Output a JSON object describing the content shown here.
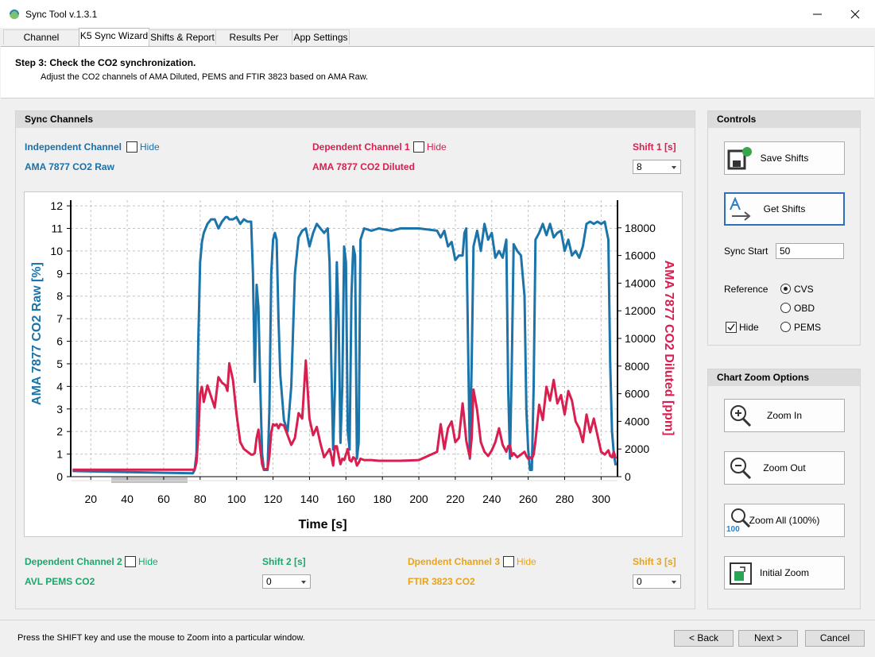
{
  "window": {
    "title": "Sync Tool v.1.3.1"
  },
  "tabs": [
    "Channel Selection",
    "K5 Sync Wizard",
    "Shifts & Report",
    "Results Per Cycle",
    "App Settings"
  ],
  "header": {
    "step": "Step 3: Check the CO2 synchronization.",
    "description": "Adjust the CO2 channels of AMA Diluted, PEMS and FTIR 3823 based on AMA Raw."
  },
  "sync_channels": {
    "title": "Sync Channels",
    "independent": {
      "label": "Independent Channel",
      "hide": "Hide",
      "channel": "AMA 7877 CO2 Raw"
    },
    "dependent_1": {
      "label": "Dependent Channel 1",
      "hide": "Hide",
      "channel": "AMA 7877 CO2 Diluted",
      "shift_label": "Shift 1 [s]",
      "shift": 8
    },
    "dependent_2": {
      "label": "Dependent Channel 2",
      "hide": "Hide",
      "channel": "AVL PEMS CO2",
      "shift_label": "Shift 2 [s]",
      "shift": 0
    },
    "dependent_3": {
      "label": "Dpendent Channel 3",
      "hide": "Hide",
      "channel": "FTIR 3823 CO2",
      "shift_label": "Shift 3 [s]",
      "shift": 0
    }
  },
  "controls": {
    "title": "Controls",
    "save": "Save Shifts",
    "get": "Get Shifts",
    "sync_start_label": "Sync Start",
    "sync_start": 50,
    "reference_label": "Reference",
    "options": [
      "CVS",
      "OBD",
      "PEMS"
    ],
    "hide": "Hide"
  },
  "zoom": {
    "title": "Chart Zoom Options",
    "buttons": [
      "Zoom In",
      "Zoom Out",
      "Zoom All (100%)",
      "Initial Zoom"
    ],
    "all_icon": "100"
  },
  "footer": {
    "hint": "Press the SHIFT key and use the mouse to Zoom into a particular window.",
    "buttons": [
      "< Back",
      "Next >",
      "Cancel"
    ]
  },
  "chart_data": {
    "type": "line",
    "xlabel": "Time [s]",
    "ylabel": "AMA 7877 CO2 Raw [%]",
    "y2label": "AMA 7877 CO2 Diluted [ppm]",
    "x": [
      10,
      40,
      76,
      77,
      78,
      79,
      80,
      81,
      82,
      84,
      86,
      88,
      90,
      92,
      94,
      95,
      96,
      98,
      100,
      102,
      104,
      106,
      108,
      109,
      110,
      111,
      112,
      113,
      114,
      115,
      117,
      118,
      119,
      120,
      121,
      122,
      123,
      124,
      126,
      128,
      130,
      132,
      134,
      136,
      138,
      140,
      142,
      144,
      146,
      148,
      150,
      151,
      152,
      153,
      154,
      155,
      156,
      157,
      158,
      159,
      160,
      161,
      162,
      163,
      164,
      165,
      166,
      167,
      168,
      170,
      174,
      178,
      185,
      190,
      200,
      210,
      212,
      214,
      216,
      218,
      220,
      222,
      224,
      225,
      226,
      227,
      228,
      229,
      230,
      232,
      234,
      236,
      238,
      240,
      242,
      244,
      246,
      248,
      249,
      250,
      251,
      252,
      254,
      256,
      258,
      259,
      260,
      261,
      262,
      263,
      264,
      266,
      268,
      270,
      272,
      274,
      276,
      278,
      280,
      282,
      284,
      286,
      288,
      290,
      292,
      294,
      296,
      298,
      300,
      302,
      304,
      305,
      306,
      307,
      308
    ],
    "series": [
      {
        "color": "#1b74aa",
        "values": [
          0.25,
          0.2,
          0.15,
          0.3,
          1,
          6,
          9.5,
          10.4,
          10.8,
          11.2,
          11.4,
          11.4,
          11.0,
          11.3,
          11.5,
          11.5,
          11.4,
          11.4,
          11.5,
          11.2,
          11.4,
          11.3,
          11.3,
          9,
          4.2,
          8.5,
          7.5,
          4,
          1,
          0.3,
          0.3,
          3,
          9,
          10.5,
          10.8,
          10.5,
          7,
          4.5,
          2.5,
          2.0,
          4,
          9,
          10.6,
          10.9,
          11.0,
          10.2,
          10.8,
          11.2,
          11.0,
          10.8,
          11.0,
          9.5,
          5,
          1.2,
          4,
          9.5,
          7,
          1.5,
          4,
          10.2,
          9.5,
          2,
          1.2,
          8,
          10.2,
          9.8,
          0.8,
          1.5,
          10.5,
          11.0,
          10.9,
          11.0,
          10.9,
          11.0,
          11.0,
          10.9,
          10.6,
          10.9,
          10.2,
          10.4,
          9.6,
          9.8,
          9.8,
          10.8,
          11.0,
          6,
          0.8,
          5,
          10.2,
          10.9,
          10.0,
          11.2,
          10.5,
          10.8,
          9.7,
          10.0,
          9.7,
          10.5,
          4,
          0.8,
          5,
          10.3,
          10.0,
          9.8,
          8,
          3,
          1.2,
          0.3,
          0.3,
          4,
          10.5,
          10.8,
          11.2,
          10.7,
          11.2,
          10.6,
          10.8,
          10.9,
          10.0,
          10.5,
          9.8,
          10.0,
          9.7,
          10.2,
          11.2,
          11.3,
          11.2,
          11.3,
          11.2,
          11.3,
          10.5,
          5,
          2,
          1.0,
          0.5
        ]
      },
      {
        "color": "#d81f4f",
        "axis": "y2",
        "values": [
          500,
          500,
          500,
          500,
          1000,
          3000,
          6000,
          6500,
          5400,
          6600,
          5800,
          5000,
          7200,
          6800,
          6600,
          6200,
          8200,
          7000,
          4500,
          2500,
          2000,
          1800,
          1600,
          1600,
          1700,
          2800,
          3400,
          2000,
          900,
          500,
          600,
          1500,
          3200,
          3800,
          3700,
          3800,
          3500,
          3800,
          3700,
          3000,
          2300,
          2800,
          4600,
          4200,
          8400,
          4200,
          3000,
          3600,
          2400,
          1400,
          1800,
          2000,
          1500,
          800,
          2200,
          2200,
          1500,
          900,
          1300,
          1200,
          1600,
          2000,
          1200,
          1100,
          1400,
          1300,
          800,
          1000,
          1300,
          1200,
          1200,
          1150,
          1150,
          1150,
          1200,
          1800,
          3800,
          2000,
          3500,
          4000,
          2500,
          2800,
          5300,
          4000,
          2600,
          2000,
          1400,
          2800,
          6300,
          4800,
          2500,
          1800,
          1500,
          1900,
          2500,
          3500,
          2300,
          1800,
          2200,
          2300,
          1500,
          1700,
          1400,
          1600,
          1800,
          1500,
          1300,
          1400,
          1300,
          1600,
          2600,
          5200,
          4100,
          6500,
          5500,
          7000,
          5300,
          5900,
          4500,
          6200,
          5500,
          4000,
          3500,
          2500,
          4500,
          3200,
          4200,
          3000,
          1800,
          1600,
          1900,
          1500,
          1400,
          1800,
          1300
        ]
      }
    ],
    "xlim": [
      9,
      309
    ],
    "ylim": [
      0,
      12.25
    ],
    "y2lim": [
      0,
      20000
    ],
    "xticks": [
      20,
      40,
      60,
      80,
      100,
      120,
      140,
      160,
      180,
      200,
      220,
      240,
      260,
      280,
      300
    ],
    "yticks": [
      0,
      1,
      2,
      3,
      4,
      5,
      6,
      7,
      8,
      9,
      10,
      11,
      12
    ],
    "y2ticks": [
      0,
      2000,
      4000,
      6000,
      8000,
      10000,
      12000,
      14000,
      16000,
      18000
    ],
    "grid": true
  }
}
